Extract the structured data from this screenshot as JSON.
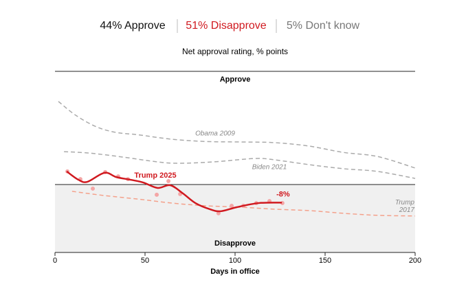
{
  "chart_data": {
    "type": "line",
    "summary": [
      {
        "text": "44% Approve",
        "color": "#111111"
      },
      {
        "text": "51% Disapprove",
        "color": "#d0191f"
      },
      {
        "text": "5% Don't know",
        "color": "#777777"
      }
    ],
    "title": "Net approval rating, % points",
    "annotations": {
      "top": "Approve",
      "bottom": "Disapprove"
    },
    "x_label": "Days in office",
    "xlim": [
      0,
      200
    ],
    "xticks": [
      0,
      50,
      100,
      150,
      200
    ],
    "ylim": [
      -30,
      50
    ],
    "shade_below_zero": true,
    "series": [
      {
        "name": "Obama 2009",
        "color": "#aaaaaa",
        "dashed": true,
        "x": [
          1.9,
          11.5,
          23,
          34,
          46,
          65,
          84,
          103,
          122,
          141,
          160,
          179,
          200
        ],
        "values": [
          36.7,
          30.6,
          25.5,
          23,
          22,
          20,
          19,
          18.8,
          18.5,
          17,
          14.2,
          12.4,
          7.3
        ]
      },
      {
        "name": "Biden 2021",
        "color": "#aaaaaa",
        "dashed": true,
        "x": [
          5,
          19,
          38,
          57,
          69,
          88,
          111,
          122,
          141,
          160,
          179,
          200
        ],
        "values": [
          14.5,
          13.9,
          12.1,
          10,
          9.4,
          10,
          11.5,
          10.9,
          8.8,
          7,
          5.8,
          2.7
        ]
      },
      {
        "name": "Trump 2017",
        "color": "#f4a08a",
        "dashed": true,
        "x": [
          9.5,
          26.7,
          45.8,
          65,
          84,
          103,
          122,
          141,
          160,
          179,
          200
        ],
        "values": [
          -3,
          -4.8,
          -6.4,
          -8.2,
          -9.4,
          -10,
          -10.9,
          -11.5,
          -12.7,
          -13.6,
          -13.9
        ]
      },
      {
        "color": "#f4a6a6",
        "dots": true,
        "x": [
          6.9,
          14.1,
          21,
          27.9,
          35.1,
          40.5,
          56.5,
          63,
          69.5,
          90.8,
          98.1,
          104.6,
          111.8,
          119.1,
          126.3
        ],
        "values": [
          5.8,
          2.4,
          -1.8,
          5.5,
          3.6,
          2.4,
          -4.5,
          1.5,
          -4.2,
          -12.7,
          -9.4,
          -9.4,
          -8.2,
          -7.3,
          -8.2
        ]
      },
      {
        "name": "Trump 2025",
        "color": "#d0191f",
        "dashed": false,
        "x": [
          6.5,
          13,
          18,
          27.5,
          34,
          42,
          49,
          57,
          64,
          71,
          78,
          86,
          92,
          101,
          113,
          126
        ],
        "values": [
          5.8,
          2.1,
          1.2,
          5.2,
          3.3,
          2.1,
          0.9,
          -1.5,
          -0.3,
          -3.9,
          -8.2,
          -10.9,
          -11.8,
          -10,
          -8.2,
          -8
        ],
        "end_label": "-8%"
      }
    ]
  }
}
